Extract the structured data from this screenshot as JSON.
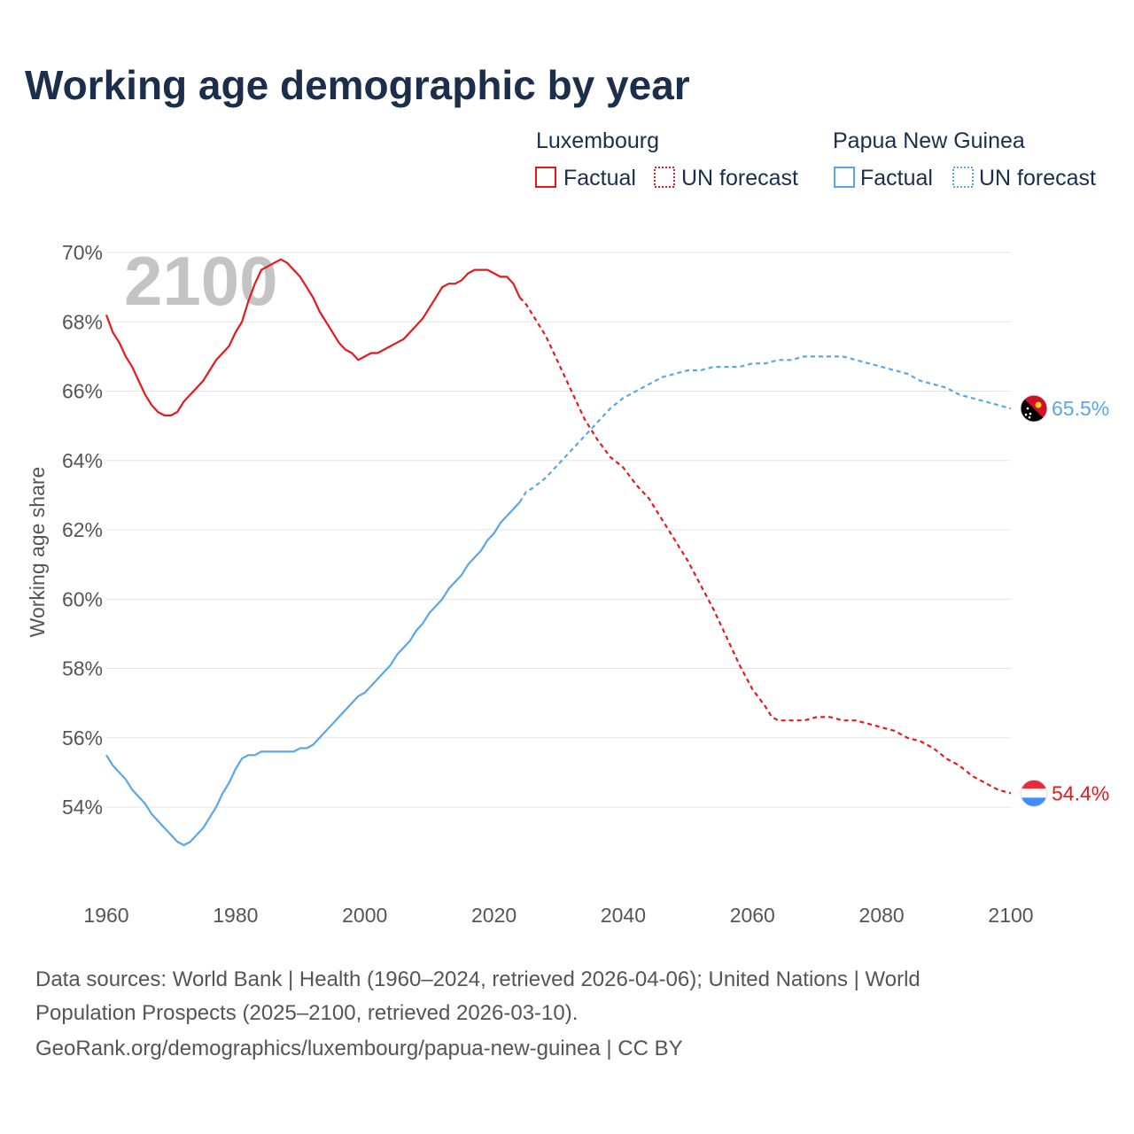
{
  "title": "Working age demographic by year",
  "year_watermark": "2100",
  "legend": [
    {
      "country": "Luxembourg",
      "factual_label": "Factual",
      "forecast_label": "UN forecast",
      "color": "#e8191d"
    },
    {
      "country": "Papua New Guinea",
      "factual_label": "Factual",
      "forecast_label": "UN forecast",
      "color": "#5aa7e8"
    }
  ],
  "source_lines": [
    "Data sources: World Bank | Health (1960–2024, retrieved 2026-04-06); United Nations | World",
    "Population Prospects (2025–2100, retrieved 2026-03-10).",
    "GeoRank.org/demographics/luxembourg/papua-new-guinea | CC BY"
  ],
  "chart_data": {
    "type": "line",
    "title": "Working age demographic by year",
    "xlabel": "",
    "ylabel": "Working age share",
    "xlim": [
      1960,
      2100
    ],
    "ylim": [
      52,
      70
    ],
    "x_ticks": [
      1960,
      1980,
      2000,
      2020,
      2040,
      2060,
      2080,
      2100
    ],
    "x_tick_labels": [
      "1960",
      "1980",
      "2000",
      "2020",
      "2040",
      "2060",
      "2080",
      "2100"
    ],
    "y_ticks": [
      54,
      56,
      58,
      60,
      62,
      64,
      66,
      68,
      70
    ],
    "y_tick_labels": [
      "54%",
      "56%",
      "58%",
      "60%",
      "62%",
      "64%",
      "66%",
      "68%",
      "70%"
    ],
    "factual_end_year": 2024,
    "series": [
      {
        "name": "Luxembourg",
        "color": "#e8191d",
        "end_label": "54.4%",
        "flag": "luxembourg-flag-icon",
        "points": [
          [
            1960,
            68.2
          ],
          [
            1961,
            67.7
          ],
          [
            1962,
            67.4
          ],
          [
            1963,
            67.0
          ],
          [
            1964,
            66.7
          ],
          [
            1965,
            66.3
          ],
          [
            1966,
            65.9
          ],
          [
            1967,
            65.6
          ],
          [
            1968,
            65.4
          ],
          [
            1969,
            65.3
          ],
          [
            1970,
            65.3
          ],
          [
            1971,
            65.4
          ],
          [
            1972,
            65.7
          ],
          [
            1973,
            65.9
          ],
          [
            1974,
            66.1
          ],
          [
            1975,
            66.3
          ],
          [
            1976,
            66.6
          ],
          [
            1977,
            66.9
          ],
          [
            1978,
            67.1
          ],
          [
            1979,
            67.3
          ],
          [
            1980,
            67.7
          ],
          [
            1981,
            68.0
          ],
          [
            1982,
            68.6
          ],
          [
            1983,
            69.1
          ],
          [
            1984,
            69.5
          ],
          [
            1985,
            69.6
          ],
          [
            1986,
            69.7
          ],
          [
            1987,
            69.8
          ],
          [
            1988,
            69.7
          ],
          [
            1989,
            69.5
          ],
          [
            1990,
            69.3
          ],
          [
            1991,
            69.0
          ],
          [
            1992,
            68.7
          ],
          [
            1993,
            68.3
          ],
          [
            1994,
            68.0
          ],
          [
            1995,
            67.7
          ],
          [
            1996,
            67.4
          ],
          [
            1997,
            67.2
          ],
          [
            1998,
            67.1
          ],
          [
            1999,
            66.9
          ],
          [
            2000,
            67.0
          ],
          [
            2001,
            67.1
          ],
          [
            2002,
            67.1
          ],
          [
            2003,
            67.2
          ],
          [
            2004,
            67.3
          ],
          [
            2005,
            67.4
          ],
          [
            2006,
            67.5
          ],
          [
            2007,
            67.7
          ],
          [
            2008,
            67.9
          ],
          [
            2009,
            68.1
          ],
          [
            2010,
            68.4
          ],
          [
            2011,
            68.7
          ],
          [
            2012,
            69.0
          ],
          [
            2013,
            69.1
          ],
          [
            2014,
            69.1
          ],
          [
            2015,
            69.2
          ],
          [
            2016,
            69.4
          ],
          [
            2017,
            69.5
          ],
          [
            2018,
            69.5
          ],
          [
            2019,
            69.5
          ],
          [
            2020,
            69.4
          ],
          [
            2021,
            69.3
          ],
          [
            2022,
            69.3
          ],
          [
            2023,
            69.1
          ],
          [
            2024,
            68.7
          ],
          [
            2025,
            68.5
          ],
          [
            2026,
            68.2
          ],
          [
            2027,
            67.9
          ],
          [
            2028,
            67.6
          ],
          [
            2029,
            67.2
          ],
          [
            2030,
            66.8
          ],
          [
            2032,
            66.0
          ],
          [
            2034,
            65.2
          ],
          [
            2036,
            64.6
          ],
          [
            2038,
            64.1
          ],
          [
            2040,
            63.8
          ],
          [
            2042,
            63.3
          ],
          [
            2044,
            62.9
          ],
          [
            2046,
            62.3
          ],
          [
            2048,
            61.7
          ],
          [
            2050,
            61.1
          ],
          [
            2052,
            60.4
          ],
          [
            2054,
            59.7
          ],
          [
            2056,
            58.9
          ],
          [
            2058,
            58.1
          ],
          [
            2060,
            57.4
          ],
          [
            2062,
            56.9
          ],
          [
            2063,
            56.6
          ],
          [
            2064,
            56.5
          ],
          [
            2066,
            56.5
          ],
          [
            2068,
            56.5
          ],
          [
            2070,
            56.6
          ],
          [
            2072,
            56.6
          ],
          [
            2074,
            56.5
          ],
          [
            2076,
            56.5
          ],
          [
            2078,
            56.4
          ],
          [
            2080,
            56.3
          ],
          [
            2082,
            56.2
          ],
          [
            2084,
            56.0
          ],
          [
            2086,
            55.9
          ],
          [
            2088,
            55.7
          ],
          [
            2090,
            55.4
          ],
          [
            2092,
            55.2
          ],
          [
            2094,
            54.9
          ],
          [
            2096,
            54.7
          ],
          [
            2098,
            54.5
          ],
          [
            2100,
            54.4
          ]
        ]
      },
      {
        "name": "Papua New Guinea",
        "color": "#5aa7e8",
        "end_label": "65.5%",
        "flag": "papua-new-guinea-flag-icon",
        "points": [
          [
            1960,
            55.5
          ],
          [
            1961,
            55.2
          ],
          [
            1962,
            55.0
          ],
          [
            1963,
            54.8
          ],
          [
            1964,
            54.5
          ],
          [
            1965,
            54.3
          ],
          [
            1966,
            54.1
          ],
          [
            1967,
            53.8
          ],
          [
            1968,
            53.6
          ],
          [
            1969,
            53.4
          ],
          [
            1970,
            53.2
          ],
          [
            1971,
            53.0
          ],
          [
            1972,
            52.9
          ],
          [
            1973,
            53.0
          ],
          [
            1974,
            53.2
          ],
          [
            1975,
            53.4
          ],
          [
            1976,
            53.7
          ],
          [
            1977,
            54.0
          ],
          [
            1978,
            54.4
          ],
          [
            1979,
            54.7
          ],
          [
            1980,
            55.1
          ],
          [
            1981,
            55.4
          ],
          [
            1982,
            55.5
          ],
          [
            1983,
            55.5
          ],
          [
            1984,
            55.6
          ],
          [
            1985,
            55.6
          ],
          [
            1986,
            55.6
          ],
          [
            1987,
            55.6
          ],
          [
            1988,
            55.6
          ],
          [
            1989,
            55.6
          ],
          [
            1990,
            55.7
          ],
          [
            1991,
            55.7
          ],
          [
            1992,
            55.8
          ],
          [
            1993,
            56.0
          ],
          [
            1994,
            56.2
          ],
          [
            1995,
            56.4
          ],
          [
            1996,
            56.6
          ],
          [
            1997,
            56.8
          ],
          [
            1998,
            57.0
          ],
          [
            1999,
            57.2
          ],
          [
            2000,
            57.3
          ],
          [
            2001,
            57.5
          ],
          [
            2002,
            57.7
          ],
          [
            2003,
            57.9
          ],
          [
            2004,
            58.1
          ],
          [
            2005,
            58.4
          ],
          [
            2006,
            58.6
          ],
          [
            2007,
            58.8
          ],
          [
            2008,
            59.1
          ],
          [
            2009,
            59.3
          ],
          [
            2010,
            59.6
          ],
          [
            2011,
            59.8
          ],
          [
            2012,
            60.0
          ],
          [
            2013,
            60.3
          ],
          [
            2014,
            60.5
          ],
          [
            2015,
            60.7
          ],
          [
            2016,
            61.0
          ],
          [
            2017,
            61.2
          ],
          [
            2018,
            61.4
          ],
          [
            2019,
            61.7
          ],
          [
            2020,
            61.9
          ],
          [
            2021,
            62.2
          ],
          [
            2022,
            62.4
          ],
          [
            2023,
            62.6
          ],
          [
            2024,
            62.8
          ],
          [
            2025,
            63.1
          ],
          [
            2026,
            63.2
          ],
          [
            2028,
            63.5
          ],
          [
            2030,
            63.9
          ],
          [
            2032,
            64.3
          ],
          [
            2034,
            64.7
          ],
          [
            2036,
            65.1
          ],
          [
            2038,
            65.5
          ],
          [
            2040,
            65.8
          ],
          [
            2042,
            66.0
          ],
          [
            2044,
            66.2
          ],
          [
            2046,
            66.4
          ],
          [
            2048,
            66.5
          ],
          [
            2050,
            66.6
          ],
          [
            2052,
            66.6
          ],
          [
            2054,
            66.7
          ],
          [
            2056,
            66.7
          ],
          [
            2058,
            66.7
          ],
          [
            2060,
            66.8
          ],
          [
            2062,
            66.8
          ],
          [
            2064,
            66.9
          ],
          [
            2066,
            66.9
          ],
          [
            2068,
            67.0
          ],
          [
            2070,
            67.0
          ],
          [
            2072,
            67.0
          ],
          [
            2074,
            67.0
          ],
          [
            2076,
            66.9
          ],
          [
            2078,
            66.8
          ],
          [
            2080,
            66.7
          ],
          [
            2082,
            66.6
          ],
          [
            2084,
            66.5
          ],
          [
            2086,
            66.3
          ],
          [
            2088,
            66.2
          ],
          [
            2090,
            66.1
          ],
          [
            2092,
            65.9
          ],
          [
            2094,
            65.8
          ],
          [
            2096,
            65.7
          ],
          [
            2098,
            65.6
          ],
          [
            2100,
            65.5
          ]
        ]
      }
    ]
  }
}
